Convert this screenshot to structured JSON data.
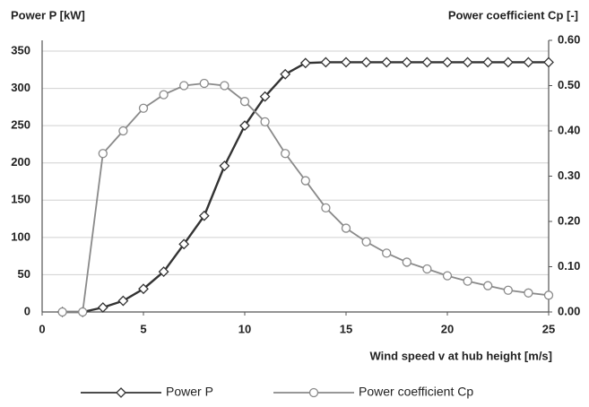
{
  "chart_data": {
    "type": "line",
    "ylabel": "Power P [kW]",
    "y2label": "Power coefficient Cp [-]",
    "xlabel": "Wind speed v at hub height [m/s]",
    "x": [
      1,
      2,
      3,
      4,
      5,
      6,
      7,
      8,
      9,
      10,
      11,
      12,
      13,
      14,
      15,
      16,
      17,
      18,
      19,
      20,
      21,
      22,
      23,
      24,
      25
    ],
    "series": [
      {
        "name": "Power P",
        "color": "#333333",
        "marker": "diamond",
        "values": [
          0,
          0,
          6,
          15,
          31,
          54,
          91,
          129,
          196,
          250,
          289,
          319,
          334,
          335,
          335,
          335,
          335,
          335,
          335,
          335,
          335,
          335,
          335,
          335,
          335
        ]
      },
      {
        "name": "Power coefficient Cp",
        "color": "#8a8a8a",
        "marker": "circle",
        "axis": "y2",
        "values": [
          0,
          0,
          0.35,
          0.4,
          0.45,
          0.48,
          0.5,
          0.505,
          0.5,
          0.465,
          0.42,
          0.35,
          0.29,
          0.23,
          0.185,
          0.155,
          0.13,
          0.11,
          0.095,
          0.08,
          0.068,
          0.058,
          0.048,
          0.042,
          0.037
        ]
      }
    ],
    "xlim": [
      0,
      25
    ],
    "xticks": [
      0,
      5,
      10,
      15,
      20,
      25
    ],
    "ylim": [
      0,
      350
    ],
    "yticks": [
      0,
      50,
      100,
      150,
      200,
      250,
      300,
      350
    ],
    "y2lim": [
      0,
      0.6
    ],
    "y2ticks": [
      {
        "value": 0,
        "label": "0.00"
      },
      {
        "value": 0.1,
        "label": "0.10"
      },
      {
        "value": 0.2,
        "label": "0.20"
      },
      {
        "value": 0.3,
        "label": "0.30"
      },
      {
        "value": 0.4,
        "label": "0.40"
      },
      {
        "value": 0.5,
        "label": "0.50"
      },
      {
        "value": 0.6,
        "label": "0.60"
      }
    ],
    "grid": true,
    "legend": "bottom"
  }
}
